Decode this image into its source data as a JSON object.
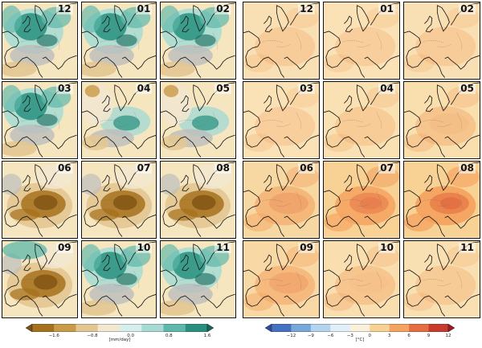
{
  "precipitation": {
    "months": [
      "12",
      "01",
      "02",
      "03",
      "04",
      "05",
      "06",
      "07",
      "08",
      "09",
      "10",
      "11"
    ],
    "panel_tints": [
      "wet",
      "wet",
      "wet",
      "wet",
      "mixed",
      "mixed",
      "dry",
      "dry",
      "dry",
      "dry",
      "wet",
      "wet"
    ],
    "colorbar": {
      "ticks": [
        "−1.6",
        "−0.8",
        "0.0",
        "0.8",
        "1.6"
      ],
      "unit": "[mm/day]",
      "colors": [
        "#7d4f10",
        "#a7711c",
        "#c99a47",
        "#e3c792",
        "#f2e7cf",
        "#d6efec",
        "#a6dad3",
        "#5cb8ab",
        "#27907f",
        "#116856"
      ]
    }
  },
  "temperature": {
    "months": [
      "12",
      "01",
      "02",
      "03",
      "04",
      "05",
      "06",
      "07",
      "08",
      "09",
      "10",
      "11"
    ],
    "panel_intensity": [
      0.32,
      0.3,
      0.32,
      0.3,
      0.34,
      0.42,
      0.6,
      0.85,
      0.95,
      0.56,
      0.4,
      0.35
    ],
    "colorbar": {
      "ticks": [
        "−12",
        "−9",
        "−6",
        "−3",
        "0",
        "3",
        "6",
        "9",
        "12"
      ],
      "unit": "[°C]",
      "colors": [
        "#2f49a0",
        "#4372c2",
        "#78a7dc",
        "#b3d4ee",
        "#e1eff8",
        "#fbf1d8",
        "#f8d295",
        "#f4a360",
        "#e56d3f",
        "#c93a2c",
        "#a0181f"
      ]
    }
  },
  "colors": {
    "land_base": "#f6e6bf",
    "grey_mask": "#bdbdbd",
    "coastline": "#1a1a1a"
  }
}
